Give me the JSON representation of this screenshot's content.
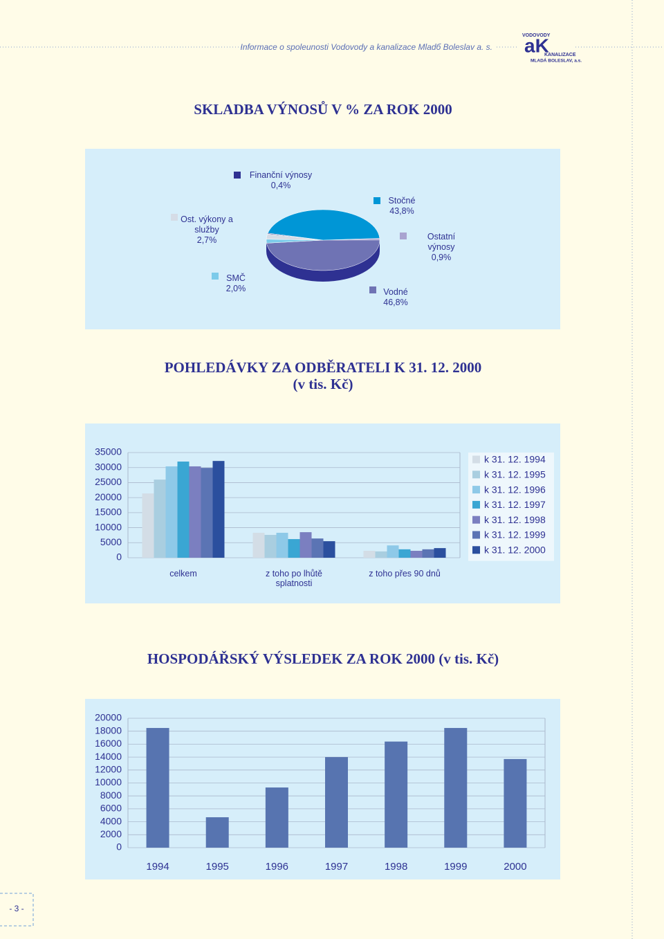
{
  "header": {
    "text": "Informace o spoleunosti Vodovody a kanalizace Mladб Boleslav a. s.",
    "logo": {
      "top": "VODOVODY",
      "letters": "aK",
      "middle": "KANALIZACE",
      "bottom": "MLADÁ BOLESLAV, a.s."
    }
  },
  "chart_data": [
    {
      "type": "pie",
      "title": "SKLADBA VÝNOSŮ V % ZA ROK 2000",
      "categories": [
        "Ostatní výnosy",
        "Vodné",
        "SMČ",
        "Ost. výkony a služby",
        "Finanční výnosy",
        "Stočné"
      ],
      "values": [
        0.9,
        46.8,
        2.0,
        2.7,
        0.4,
        43.8
      ],
      "value_labels": [
        "0,9%",
        "46,8%",
        "2,0%",
        "2,7%",
        "0,4%",
        "43,8%"
      ],
      "colors": [
        "#a9a3d0",
        "#6f73b4",
        "#7ccbea",
        "#d5dce6",
        "#2e3192",
        "#0096d6"
      ]
    },
    {
      "type": "bar",
      "title": "POHLEDÁVKY ZA ODBĚRATELI K 31. 12. 2000",
      "subtitle": "(v tis. Kč)",
      "categories": [
        "celkem",
        "z toho po lhůtě splatnosti",
        "z toho přes 90 dnů"
      ],
      "series": [
        {
          "name": "k 31. 12. 1994",
          "color": "#d3dde6",
          "values": [
            21400,
            8300,
            2300
          ]
        },
        {
          "name": "k 31. 12. 1995",
          "color": "#a9cee0",
          "values": [
            26000,
            7600,
            2100
          ]
        },
        {
          "name": "k 31. 12. 1996",
          "color": "#8ec9e8",
          "values": [
            30400,
            8300,
            4100
          ]
        },
        {
          "name": "k 31. 12. 1997",
          "color": "#3aa6d3",
          "values": [
            32000,
            6200,
            2800
          ]
        },
        {
          "name": "k 31. 12. 1998",
          "color": "#7b7fc0",
          "values": [
            30400,
            8500,
            2300
          ]
        },
        {
          "name": "k 31. 12. 1999",
          "color": "#5b74b4",
          "values": [
            29900,
            6400,
            2800
          ]
        },
        {
          "name": "k 31. 12. 2000",
          "color": "#2b4f9e",
          "values": [
            32200,
            5500,
            3200
          ]
        }
      ],
      "ylim": [
        0,
        35000
      ],
      "yticks": [
        0,
        5000,
        10000,
        15000,
        20000,
        25000,
        30000,
        35000
      ],
      "grid": true,
      "legend": "right"
    },
    {
      "type": "bar",
      "title": "HOSPODÁŘSKÝ VÝSLEDEK ZA ROK 2000 (v tis. Kč)",
      "categories": [
        "1994",
        "1995",
        "1996",
        "1997",
        "1998",
        "1999",
        "2000"
      ],
      "values": [
        18500,
        4700,
        9300,
        14000,
        16400,
        18500,
        13700
      ],
      "color": "#5774b0",
      "ylim": [
        0,
        20000
      ],
      "yticks": [
        0,
        2000,
        4000,
        6000,
        8000,
        10000,
        12000,
        14000,
        16000,
        18000,
        20000
      ],
      "grid": true
    }
  ],
  "page_number": "- 3 -"
}
